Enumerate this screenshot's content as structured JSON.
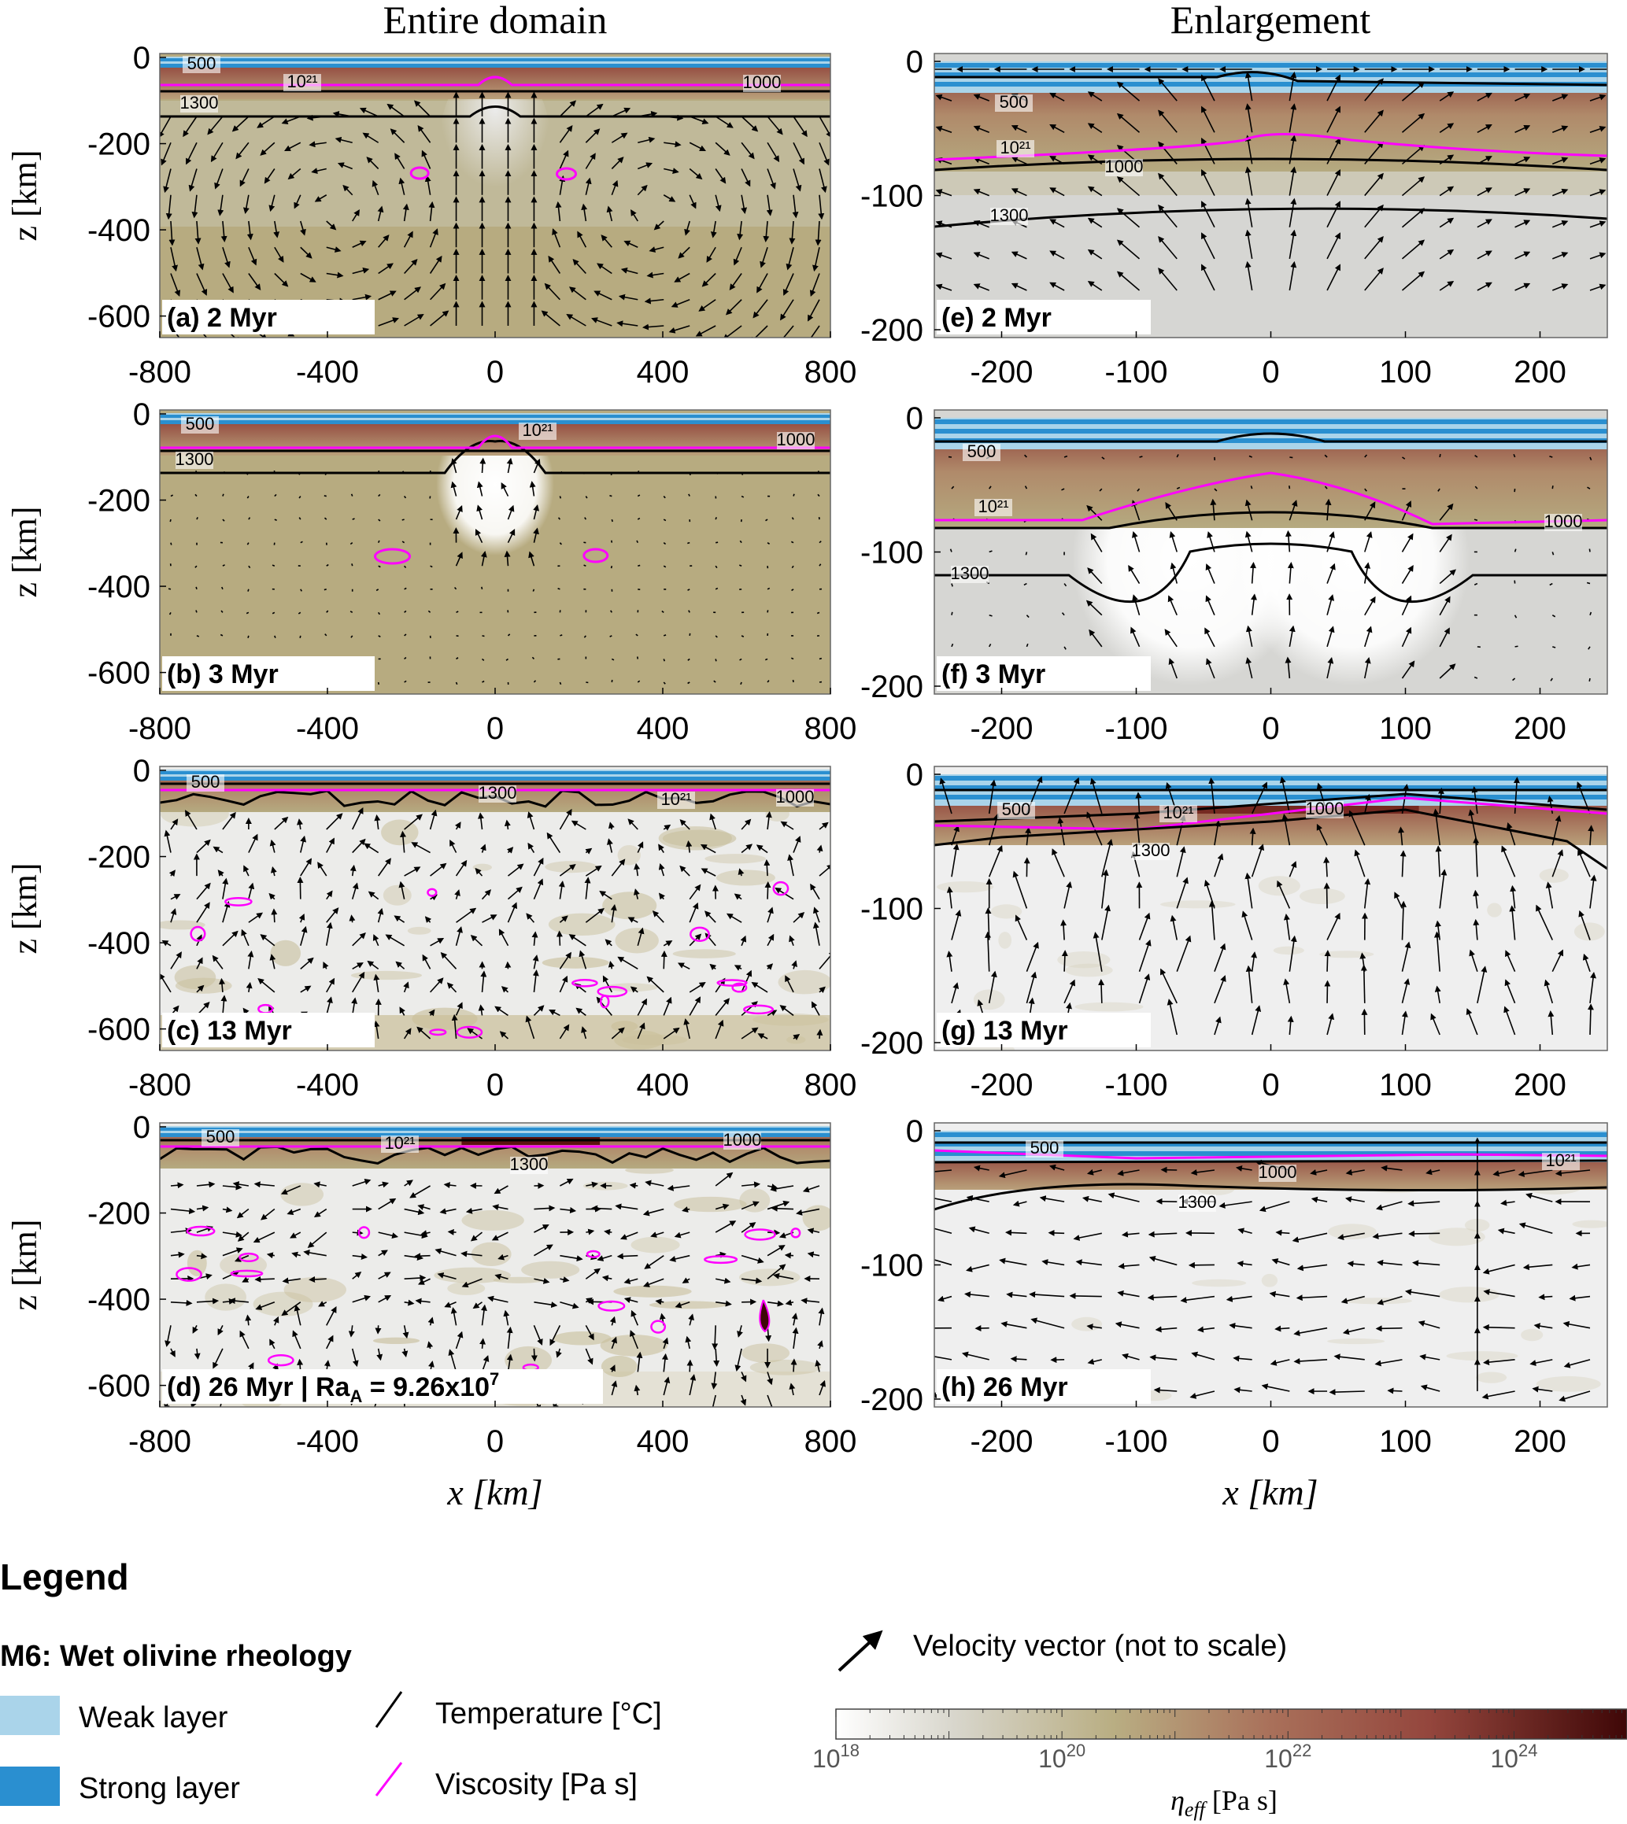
{
  "columns": {
    "left_title": "Entire domain",
    "right_title": "Enlargement"
  },
  "axes": {
    "z_label": "z [km]",
    "x_label": "x [km]",
    "left_x_ticks": [
      "-800",
      "-400",
      "0",
      "400",
      "800"
    ],
    "left_z_ticks": [
      "0",
      "-200",
      "-400",
      "-600"
    ],
    "right_x_ticks": [
      "-200",
      "-100",
      "0",
      "100",
      "200"
    ],
    "right_z_ticks": [
      "0",
      "-100",
      "-200"
    ]
  },
  "panels_left": [
    {
      "label": "(a) 2 Myr",
      "c500": "500",
      "c1021": "10²¹",
      "c1000": "1000",
      "c1300": "1300"
    },
    {
      "label": "(b) 3 Myr",
      "c500": "500",
      "c1021": "10²¹",
      "c1000": "1000",
      "c1300": "1300"
    },
    {
      "label": "(c) 13 Myr",
      "c500": "500",
      "c1021": "10²¹",
      "c1000": "1000",
      "c1300": "1300"
    },
    {
      "label": "(d) 26 Myr   | Ra",
      "label_sub": "A",
      "label_tail": " = 9.26x10",
      "label_sup": "7",
      "c500": "500",
      "c1021": "10²¹",
      "c1000": "1000",
      "c1300": "1300"
    }
  ],
  "panels_right": [
    {
      "label": "(e) 2 Myr",
      "c500": "500",
      "c1021": "10²¹",
      "c1000": "1000",
      "c1300": "1300"
    },
    {
      "label": "(f) 3 Myr",
      "c500": "500",
      "c1021": "10²¹",
      "c1000": "1000",
      "c1300": "1300"
    },
    {
      "label": "(g) 13 Myr",
      "c500": "500",
      "c1021": "10²¹",
      "c1000": "1000",
      "c1300": "1300"
    },
    {
      "label": "(h) 26 Myr",
      "c500": "500",
      "c1021": "10²¹",
      "c1000": "1000",
      "c1300": "1300"
    }
  ],
  "legend": {
    "title": "Legend",
    "model": "M6: Wet olivine rheology",
    "weak_layer": "Weak layer",
    "strong_layer": "Strong layer",
    "temperature": "Temperature [°C]",
    "viscosity": "Viscosity [Pa s]",
    "velocity": "Velocity vector (not to scale)",
    "colorbar_label": "η_eff [Pa s]",
    "colorbar_ticks": [
      "10^18",
      "10^20",
      "10^22",
      "10^24"
    ]
  },
  "colors": {
    "weak_layer": "#aad4ea",
    "strong_layer": "#2a8fd0",
    "viscosity_contour": "#ff00ff",
    "temperature_contour": "#000000",
    "colormap": [
      "#ffffff",
      "#b9ae83",
      "#9c5a48",
      "#3f0707"
    ]
  }
}
